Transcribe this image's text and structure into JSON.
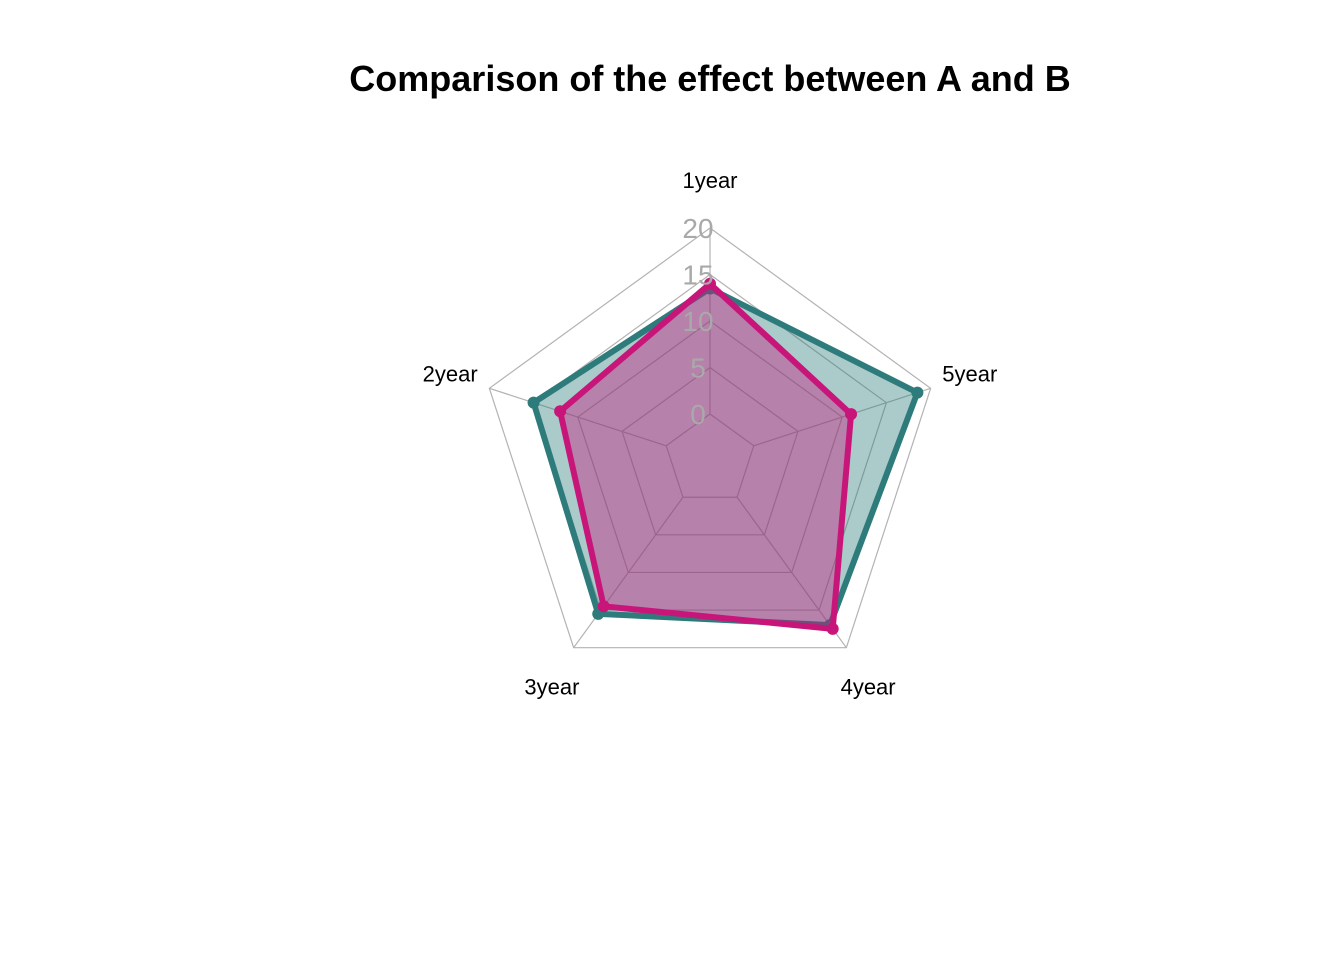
{
  "chart_data": {
    "type": "radar",
    "title": "Comparison of the effect between A and B",
    "axes": [
      "1year",
      "5year",
      "4year",
      "3year",
      "2year"
    ],
    "ticks": [
      "0",
      "5",
      "10",
      "15",
      "20"
    ],
    "range": [
      0,
      20
    ],
    "series": [
      {
        "values": [
          13.5,
          18.5,
          17,
          15.5,
          15
        ],
        "color": "#2e7b7b",
        "fill": "rgba(46,123,123,0.4)"
      },
      {
        "values": [
          14,
          11,
          17.5,
          14.5,
          12
        ],
        "color": "#c8157a",
        "fill": "rgba(200,21,122,0.4)"
      }
    ],
    "grid_color": "#b3b3b3"
  }
}
